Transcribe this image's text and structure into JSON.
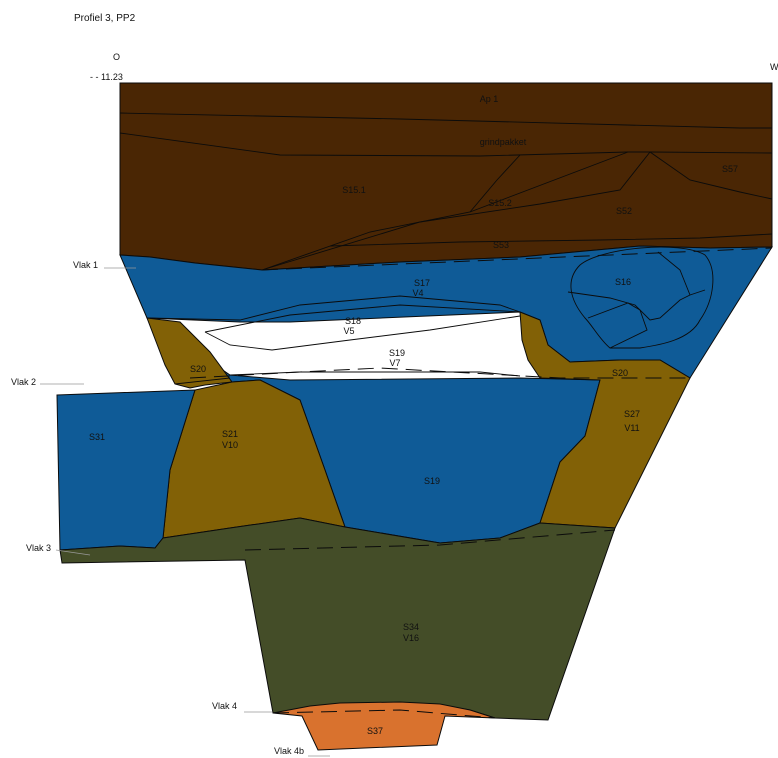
{
  "title": "Profiel 3, PP2",
  "orientation": {
    "left": "O",
    "right": "W"
  },
  "elevation": "- - 11.23",
  "colors": {
    "topsoil": "#4a2604",
    "blue": "#0f5b97",
    "ochre": "#826106",
    "olive": "#444d28",
    "orange": "#d9722e",
    "line": "#0b0b0b"
  },
  "levels": [
    {
      "id": "vlak1",
      "label": "Vlak 1"
    },
    {
      "id": "vlak2",
      "label": "Vlak 2"
    },
    {
      "id": "vlak3",
      "label": "Vlak 3"
    },
    {
      "id": "vlak4",
      "label": "Vlak 4"
    },
    {
      "id": "vlak4b",
      "label": "Vlak 4b"
    }
  ],
  "features": {
    "ap1": "Ap 1",
    "grindpakket": "grindpakket",
    "s15_1": "S15.1",
    "s15_2": "S15.2",
    "s57": "S57",
    "s52": "S52",
    "s53": "S53",
    "s17": [
      "S17",
      "V4"
    ],
    "s16": "S16",
    "s18": [
      "S18",
      "V5"
    ],
    "s19a": [
      "S19",
      "V7"
    ],
    "s20a": "S20",
    "s20b": "S20",
    "s31": "S31",
    "s21": [
      "S21",
      "V10"
    ],
    "s19b": "S19",
    "s27": [
      "S27",
      "V11"
    ],
    "s34": [
      "S34",
      "V16"
    ],
    "s37": "S37"
  }
}
